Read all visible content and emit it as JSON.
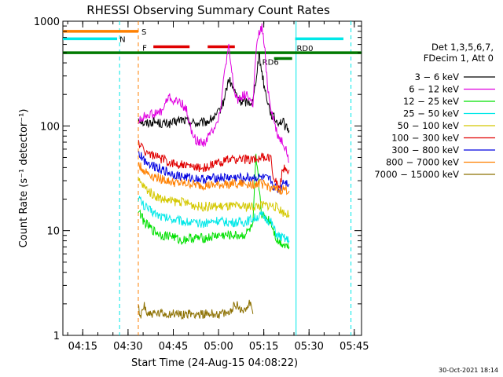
{
  "chart_data": {
    "type": "line",
    "title": "RHESSI Observing Summary Count Rates",
    "xlabel": "Start Time (24-Aug-15 04:08:22)",
    "ylabel": "Count Rate (s⁻¹ detector⁻¹)",
    "yscale": "log",
    "ylim": [
      1,
      1000
    ],
    "xlim_minutes": [
      0,
      99
    ],
    "y_ticks": [
      {
        "value": 1,
        "label": "1"
      },
      {
        "value": 10,
        "label": "10"
      },
      {
        "value": 100,
        "label": "100"
      },
      {
        "value": 1000,
        "label": "1000"
      }
    ],
    "x_ticks": [
      {
        "minute": 6.6,
        "label": "04:15"
      },
      {
        "minute": 21.6,
        "label": "04:30"
      },
      {
        "minute": 36.6,
        "label": "04:45"
      },
      {
        "minute": 51.6,
        "label": "05:00"
      },
      {
        "minute": 66.6,
        "label": "05:15"
      },
      {
        "minute": 81.6,
        "label": "05:30"
      },
      {
        "minute": 96.6,
        "label": "05:45"
      }
    ],
    "legend": {
      "position": "right",
      "header": [
        "Det 1,3,5,6,7,",
        "FDecim 1, Att 0"
      ],
      "entries": [
        {
          "label": "3 − 6 keV",
          "color": "#000000"
        },
        {
          "label": "6 − 12 keV",
          "color": "#e000e0"
        },
        {
          "label": "12 − 25 keV",
          "color": "#00e000"
        },
        {
          "label": "25 − 50 keV",
          "color": "#00e8e8"
        },
        {
          "label": "50 − 100 keV",
          "color": "#d4c800"
        },
        {
          "label": "100 − 300 keV",
          "color": "#e00000"
        },
        {
          "label": "300 − 800 keV",
          "color": "#0000e0"
        },
        {
          "label": "800 − 7000 keV",
          "color": "#ff8000"
        },
        {
          "label": "7000 − 15000 keV",
          "color": "#8c7000"
        }
      ]
    },
    "series": [
      {
        "name": "3 − 6 keV",
        "color": "#000000",
        "x": [
          25,
          27,
          30,
          33,
          36,
          39,
          42,
          45,
          48,
          51,
          53,
          55,
          57,
          59,
          61,
          63,
          65,
          67,
          69,
          71,
          73,
          74,
          75
        ],
        "y": [
          120,
          105,
          110,
          105,
          105,
          115,
          110,
          105,
          110,
          125,
          160,
          280,
          210,
          170,
          170,
          170,
          480,
          220,
          130,
          110,
          110,
          95,
          90
        ]
      },
      {
        "name": "6 − 12 keV",
        "color": "#e000e0",
        "x": [
          25,
          28,
          31,
          33,
          35,
          37,
          39,
          41,
          43,
          45,
          47,
          49,
          51,
          52,
          54,
          55,
          56,
          57,
          58,
          59,
          61,
          63,
          64,
          65,
          66,
          67,
          68,
          69,
          70,
          71,
          72,
          73,
          74,
          75
        ],
        "y": [
          110,
          130,
          130,
          140,
          190,
          170,
          170,
          140,
          80,
          70,
          70,
          85,
          110,
          130,
          400,
          550,
          320,
          200,
          180,
          190,
          200,
          160,
          500,
          750,
          880,
          500,
          220,
          150,
          110,
          85,
          75,
          70,
          60,
          45
        ]
      },
      {
        "name": "12 − 25 keV",
        "color": "#00e000",
        "x": [
          25,
          27,
          30,
          33,
          36,
          39,
          42,
          45,
          48,
          51,
          54,
          57,
          60,
          63,
          64,
          66,
          68,
          69,
          71,
          73,
          75
        ],
        "y": [
          16,
          12,
          10,
          9,
          9,
          8,
          8.5,
          8.5,
          8.5,
          9,
          9,
          9,
          9,
          11,
          50,
          14,
          13,
          12,
          8,
          7.5,
          7
        ]
      },
      {
        "name": "25 − 50 keV",
        "color": "#00e8e8",
        "x": [
          25,
          27,
          30,
          33,
          36,
          39,
          42,
          45,
          48,
          51,
          54,
          57,
          60,
          63,
          66,
          69,
          71,
          73,
          75
        ],
        "y": [
          21,
          17,
          15,
          13.5,
          13,
          12.5,
          12,
          11.5,
          12,
          12.5,
          12,
          12,
          12,
          13,
          14,
          12,
          9,
          8.5,
          8
        ]
      },
      {
        "name": "50 − 100 keV",
        "color": "#d4c800",
        "x": [
          25,
          27,
          30,
          33,
          36,
          39,
          42,
          45,
          48,
          51,
          54,
          57,
          60,
          63,
          66,
          69,
          70,
          72,
          73,
          75
        ],
        "y": [
          30,
          26,
          22,
          20,
          19,
          19,
          18,
          17,
          17,
          17,
          17,
          17,
          17,
          17,
          17.5,
          17.5,
          17,
          16,
          15,
          14
        ]
      },
      {
        "name": "100 − 300 keV",
        "color": "#e00000",
        "x": [
          25,
          27,
          30,
          33,
          36,
          39,
          42,
          45,
          48,
          51,
          54,
          57,
          60,
          63,
          66,
          69,
          70,
          72,
          73,
          75
        ],
        "y": [
          70,
          58,
          52,
          48,
          44,
          43,
          41,
          40,
          40,
          44,
          47,
          48,
          48,
          48,
          50,
          49,
          30,
          27,
          40,
          38
        ]
      },
      {
        "name": "300 − 800 keV",
        "color": "#0000e0",
        "x": [
          25,
          27,
          30,
          33,
          36,
          39,
          42,
          45,
          48,
          51,
          54,
          57,
          60,
          63,
          66,
          69,
          70,
          72,
          73,
          75
        ],
        "y": [
          55,
          47,
          42,
          38,
          35,
          33,
          32,
          31,
          31,
          32,
          32,
          32,
          32,
          32,
          32,
          30,
          26,
          24,
          30,
          28
        ]
      },
      {
        "name": "800 − 7000 keV",
        "color": "#ff8000",
        "x": [
          25,
          27,
          30,
          33,
          36,
          39,
          42,
          45,
          48,
          51,
          54,
          57,
          60,
          63,
          66,
          69,
          70,
          72,
          73,
          75
        ],
        "y": [
          43,
          37,
          33,
          31,
          29,
          28,
          28,
          27,
          27,
          27,
          28,
          28,
          28,
          28,
          28,
          26,
          25,
          24,
          25,
          24
        ]
      },
      {
        "name": "7000 − 15000 keV",
        "color": "#8c7000",
        "x": [
          25,
          25.5,
          27,
          28,
          55,
          57,
          60,
          62,
          63
        ],
        "y": [
          2,
          1.4,
          2,
          1.6,
          1.6,
          2,
          1.7,
          2.1,
          1.6
        ]
      }
    ],
    "flag_bars": [
      {
        "label": "S",
        "color": "#ff8000",
        "y_level": 800,
        "segments": [
          [
            0,
            25
          ]
        ]
      },
      {
        "label": "N",
        "color": "#00e8e8",
        "y_level": 680,
        "segments": [
          [
            0,
            18
          ],
          [
            77,
            93
          ]
        ]
      },
      {
        "label": "F",
        "color": "#e00000",
        "y_level": 570,
        "segments": [
          [
            30,
            42
          ],
          [
            48,
            57
          ]
        ]
      },
      {
        "label": "RD0",
        "color": "#007a00",
        "y_level": 500,
        "segments": [
          [
            0,
            99
          ]
        ]
      },
      {
        "label": "RD6",
        "color": "#007a00",
        "y_level": 440,
        "segments": [
          [
            70,
            76
          ]
        ]
      }
    ],
    "vertical_markers": [
      {
        "minute": 18.8,
        "color": "#00e8e8",
        "style": "dashed"
      },
      {
        "minute": 25,
        "color": "#ff8000",
        "style": "dashed"
      },
      {
        "minute": 77.3,
        "color": "#00e8e8",
        "style": "solid"
      },
      {
        "minute": 95.5,
        "color": "#00e8e8",
        "style": "dashed"
      }
    ],
    "footer_date": "30-Oct-2021 18:14"
  }
}
